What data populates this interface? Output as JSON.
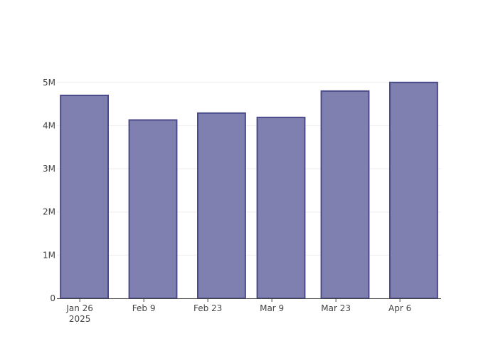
{
  "chart_data": {
    "type": "bar",
    "x": [
      "2025-01-27",
      "2025-02-11",
      "2025-02-26",
      "2025-03-11",
      "2025-03-25",
      "2025-04-09"
    ],
    "values": [
      4700000,
      4130000,
      4290000,
      4190000,
      4800000,
      5000000
    ],
    "color": "#7f7fb0",
    "edge_color": "#4b4b8a",
    "xlim": [
      "2025-01-21",
      "2025-04-15"
    ],
    "xticks": [
      {
        "value": "2025-01-26",
        "label": "Jan 26\n2025"
      },
      {
        "value": "2025-02-09",
        "label": "Feb 9"
      },
      {
        "value": "2025-02-23",
        "label": "Feb 23"
      },
      {
        "value": "2025-03-09",
        "label": "Mar 9"
      },
      {
        "value": "2025-03-23",
        "label": "Mar 23"
      },
      {
        "value": "2025-04-06",
        "label": "Apr 6"
      }
    ],
    "ylim": [
      0,
      5260000
    ],
    "yticks": [
      0,
      {
        "value": 1000000,
        "label": "1M"
      },
      {
        "value": 2000000,
        "label": "2M"
      },
      {
        "value": 3000000,
        "label": "3M"
      },
      {
        "value": 4000000,
        "label": "4M"
      },
      {
        "value": 5000000,
        "label": "5M"
      }
    ],
    "grid": true
  }
}
